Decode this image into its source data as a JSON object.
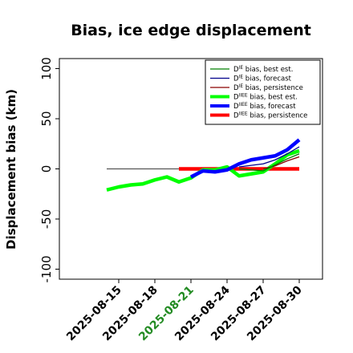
{
  "chart_data": {
    "type": "line",
    "title": "Bias, ice edge displacement",
    "ylabel": "Displacement bias (km)",
    "xlabel": "",
    "ylim": [
      -110,
      110
    ],
    "yticks": [
      -100,
      -50,
      0,
      50,
      100
    ],
    "xlim": [
      "2025-08-12",
      "2025-08-30"
    ],
    "xticks": [
      {
        "label": "2025-08-15",
        "value": "2025-08-15",
        "color": "#000000"
      },
      {
        "label": "2025-08-18",
        "value": "2025-08-18",
        "color": "#000000"
      },
      {
        "label": "2025-08-21",
        "value": "2025-08-21",
        "color": "#228b22"
      },
      {
        "label": "2025-08-24",
        "value": "2025-08-24",
        "color": "#000000"
      },
      {
        "label": "2025-08-27",
        "value": "2025-08-27",
        "color": "#000000"
      },
      {
        "label": "2025-08-30",
        "value": "2025-08-30",
        "color": "#000000"
      }
    ],
    "grid": false,
    "legend_position": "top-right",
    "series": [
      {
        "name": "D^IE bias, best est.",
        "color": "#008000",
        "width": "thin",
        "x": [
          "2025-08-25",
          "2025-08-27",
          "2025-08-29",
          "2025-08-30"
        ],
        "y": [
          0,
          -2,
          10,
          15
        ]
      },
      {
        "name": "D^IE bias, forecast",
        "color": "#00008b",
        "width": "thin",
        "x": [
          "2025-08-25",
          "2025-08-27",
          "2025-08-28",
          "2025-08-29",
          "2025-08-30"
        ],
        "y": [
          2,
          5,
          9,
          15,
          22
        ]
      },
      {
        "name": "D^IE bias, persistence",
        "color": "#8b0000",
        "width": "thin",
        "x": [
          "2025-08-27",
          "2025-08-28",
          "2025-08-29",
          "2025-08-30"
        ],
        "y": [
          0,
          3,
          8,
          12
        ]
      },
      {
        "name": "D^IIEE bias, best est.",
        "color": "#00ff00",
        "width": "thick",
        "x": [
          "2025-08-14",
          "2025-08-15",
          "2025-08-16",
          "2025-08-17",
          "2025-08-18",
          "2025-08-19",
          "2025-08-20",
          "2025-08-21",
          "2025-08-22",
          "2025-08-23",
          "2025-08-24",
          "2025-08-25",
          "2025-08-26",
          "2025-08-27",
          "2025-08-28",
          "2025-08-29",
          "2025-08-30"
        ],
        "y": [
          -21,
          -18,
          -16,
          -15,
          -11,
          -8,
          -13,
          -9,
          -1,
          -1,
          2,
          -7,
          -5,
          -3,
          5,
          14,
          18
        ]
      },
      {
        "name": "D^IIEE bias, forecast",
        "color": "#0000ff",
        "width": "thick",
        "x": [
          "2025-08-21",
          "2025-08-22",
          "2025-08-23",
          "2025-08-24",
          "2025-08-25",
          "2025-08-26",
          "2025-08-27",
          "2025-08-28",
          "2025-08-29",
          "2025-08-30"
        ],
        "y": [
          -8,
          -2,
          -3,
          -1,
          5,
          9,
          11,
          13,
          19,
          29
        ]
      },
      {
        "name": "D^IIEE bias, persistence",
        "color": "#ff0000",
        "width": "thick",
        "x": [
          "2025-08-20",
          "2025-08-30"
        ],
        "y": [
          0,
          0
        ]
      }
    ],
    "reference_line": {
      "y": 0,
      "x_start": "2025-08-14",
      "x_end": "2025-08-20",
      "color": "#555555"
    }
  }
}
